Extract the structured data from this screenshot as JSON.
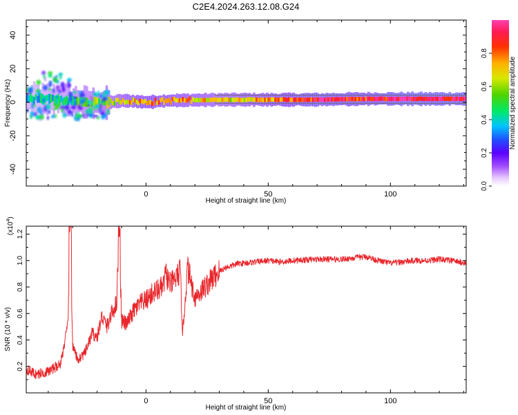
{
  "title": "C2E4.2024.263.12.08.G24",
  "chart_data": [
    {
      "type": "heatmap",
      "title": "C2E4.2024.263.12.08.G24",
      "xlabel": "Height of straight line (km)",
      "ylabel": "Frequency (Hz)",
      "xlim": [
        -49,
        131
      ],
      "ylim": [
        -50,
        49
      ],
      "xticks": [
        0,
        50,
        100
      ],
      "yticks": [
        40,
        20,
        0,
        -20,
        -40
      ],
      "xtick_labels": [
        "0",
        "50",
        "100"
      ],
      "ytick_labels": [
        "40",
        "20",
        "0",
        "-20",
        "-40"
      ],
      "colorbar": {
        "label": "Normalized spectral amplitude",
        "range": [
          0.0,
          1.0
        ],
        "ticks": [
          0.0,
          0.2,
          0.4,
          0.6,
          0.8
        ],
        "tick_labels": [
          "0.0",
          "0.2",
          "0.4",
          "0.6",
          "0.8"
        ]
      },
      "band": {
        "description_points": [
          {
            "x": -45,
            "f": 2,
            "amp": 0.35
          },
          {
            "x": -30,
            "f": 1,
            "amp": 0.45
          },
          {
            "x": -20,
            "f": -1,
            "amp": 0.55
          },
          {
            "x": -10,
            "f": 1,
            "amp": 0.7
          },
          {
            "x": 0,
            "f": 0,
            "amp": 0.8
          },
          {
            "x": 10,
            "f": 1,
            "amp": 0.75
          },
          {
            "x": 30,
            "f": 1.5,
            "amp": 0.65
          },
          {
            "x": 50,
            "f": 1.5,
            "amp": 0.75
          },
          {
            "x": 70,
            "f": 1.5,
            "amp": 0.9
          },
          {
            "x": 90,
            "f": 2,
            "amp": 0.85
          },
          {
            "x": 110,
            "f": 2,
            "amp": 0.95
          },
          {
            "x": 130,
            "f": 2,
            "amp": 0.95
          }
        ]
      }
    },
    {
      "type": "line",
      "xlabel": "Height of straight line (km)",
      "ylabel": "SNR (10 * v/v)",
      "exponent_label": "(x10",
      "exponent_power": "4",
      "exponent_close": ")",
      "xlim": [
        -49,
        131
      ],
      "ylim": [
        0.0,
        1.26
      ],
      "xticks": [
        0,
        50,
        100
      ],
      "yticks": [
        0.2,
        0.4,
        0.6,
        0.8,
        1.0,
        1.2
      ],
      "xtick_labels": [
        "0",
        "50",
        "100"
      ],
      "ytick_labels": [
        "0.2",
        "0.4",
        "0.6",
        "0.8",
        "1.0",
        "1.2"
      ],
      "series": [
        {
          "name": "SNR",
          "color": "#e8262b",
          "x": [
            -49,
            -45,
            -40,
            -35,
            -32,
            -31,
            -30,
            -28,
            -25,
            -22,
            -20,
            -18,
            -16,
            -14,
            -12,
            -11,
            -10,
            -8,
            -5,
            -2,
            0,
            3,
            5,
            7,
            8,
            10,
            12,
            14,
            15,
            17,
            20,
            23,
            25,
            28,
            30,
            33,
            35,
            38,
            40,
            45,
            50,
            55,
            60,
            70,
            80,
            85,
            90,
            95,
            100,
            105,
            110,
            115,
            120,
            125,
            131
          ],
          "values": [
            0.18,
            0.14,
            0.16,
            0.22,
            0.5,
            1.24,
            0.35,
            0.25,
            0.3,
            0.45,
            0.42,
            0.58,
            0.5,
            0.6,
            0.68,
            1.24,
            0.55,
            0.52,
            0.62,
            0.68,
            0.7,
            0.76,
            0.78,
            0.8,
            0.9,
            0.82,
            0.86,
            0.92,
            0.45,
            0.95,
            0.72,
            0.78,
            0.82,
            0.88,
            0.92,
            0.95,
            0.96,
            0.98,
            0.98,
            0.99,
            1.0,
            0.99,
            1.0,
            1.01,
            1.01,
            1.02,
            1.03,
            1.0,
            0.98,
            0.99,
            1.0,
            1.0,
            1.01,
            1.0,
            0.98
          ]
        }
      ]
    }
  ]
}
